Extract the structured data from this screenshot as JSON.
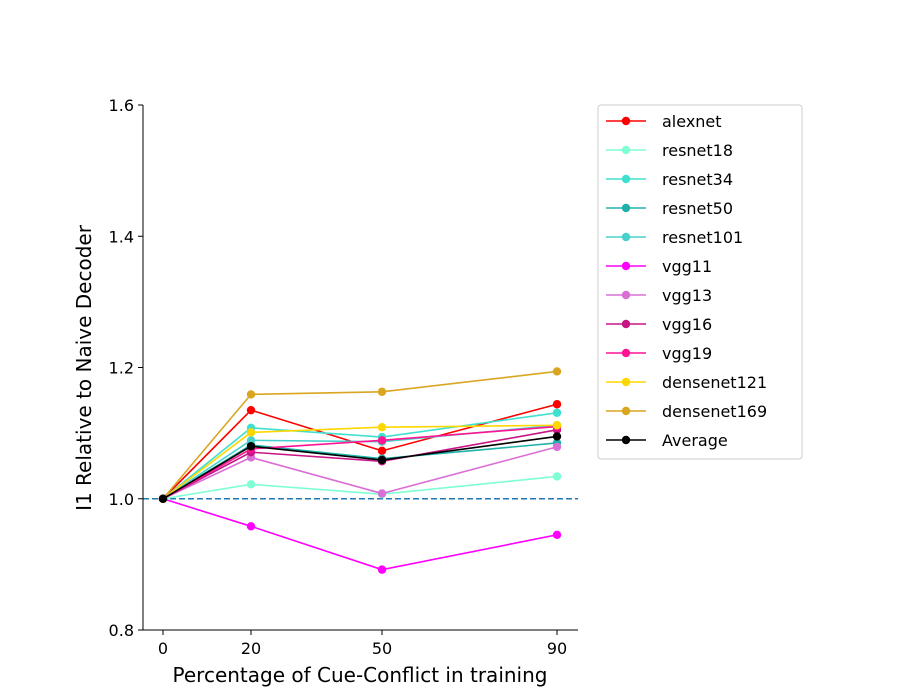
{
  "chart_data": {
    "type": "line",
    "title": "",
    "xlabel": "Percentage of Cue-Conflict in training",
    "ylabel": "I1 Relative to Naive Decoder",
    "x": [
      0,
      20,
      50,
      90
    ],
    "x_tick_labels": [
      "0",
      "20",
      "50",
      "90"
    ],
    "ylim": [
      0.8,
      1.6
    ],
    "y_ticks": [
      0.8,
      1.0,
      1.2,
      1.4,
      1.6
    ],
    "y_tick_labels": [
      "0.8",
      "1.0",
      "1.2",
      "1.4",
      "1.6"
    ],
    "grid": false,
    "legend_position": "outside right",
    "reference_line": {
      "y": 1.0,
      "style": "dashed",
      "color": "#1f77b4"
    },
    "series": [
      {
        "name": "alexnet",
        "color": "#ff0000",
        "values": [
          1.0,
          1.135,
          1.073,
          1.144
        ]
      },
      {
        "name": "resnet18",
        "color": "#7fffd4",
        "values": [
          1.0,
          1.022,
          1.007,
          1.034
        ]
      },
      {
        "name": "resnet34",
        "color": "#40e0d0",
        "values": [
          1.0,
          1.108,
          1.094,
          1.131
        ]
      },
      {
        "name": "resnet50",
        "color": "#20b2aa",
        "values": [
          1.0,
          1.082,
          1.061,
          1.085
        ]
      },
      {
        "name": "resnet101",
        "color": "#48d1cc",
        "values": [
          1.0,
          1.089,
          1.087,
          1.112
        ]
      },
      {
        "name": "vgg11",
        "color": "#ff00ff",
        "values": [
          1.0,
          0.958,
          0.892,
          0.945
        ]
      },
      {
        "name": "vgg13",
        "color": "#da70d6",
        "values": [
          1.0,
          1.063,
          1.008,
          1.079
        ]
      },
      {
        "name": "vgg16",
        "color": "#c71585",
        "values": [
          1.0,
          1.071,
          1.057,
          1.105
        ]
      },
      {
        "name": "vgg19",
        "color": "#ff1493",
        "values": [
          1.0,
          1.076,
          1.089,
          1.11
        ]
      },
      {
        "name": "densenet121",
        "color": "#ffd700",
        "values": [
          1.0,
          1.101,
          1.109,
          1.112
        ]
      },
      {
        "name": "densenet169",
        "color": "#daa520",
        "values": [
          1.0,
          1.159,
          1.163,
          1.194
        ]
      },
      {
        "name": "Average",
        "color": "#000000",
        "values": [
          1.0,
          1.08,
          1.059,
          1.095
        ]
      }
    ]
  }
}
